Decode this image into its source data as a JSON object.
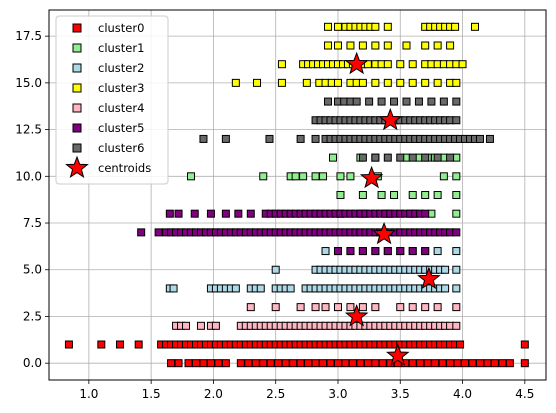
{
  "chart_data": {
    "type": "scatter",
    "title": "",
    "xlabel": "",
    "ylabel": "",
    "xlim": [
      0.68,
      4.67
    ],
    "ylim": [
      -0.9,
      18.9
    ],
    "grid": true,
    "legend_position": "top-left",
    "x_ticks": [
      "1.0",
      "1.5",
      "2.0",
      "2.5",
      "3.0",
      "3.5",
      "4.0",
      "4.5"
    ],
    "x_tick_values": [
      1.0,
      1.5,
      2.0,
      2.5,
      3.0,
      3.5,
      4.0,
      4.5
    ],
    "y_ticks": [
      "0.0",
      "2.5",
      "5.0",
      "7.5",
      "10.0",
      "12.5",
      "15.0",
      "17.5"
    ],
    "y_tick_values": [
      0,
      2.5,
      5,
      7.5,
      10,
      12.5,
      15,
      17.5
    ],
    "series": [
      {
        "name": "cluster0",
        "color": "#ff0000",
        "rows": [
          {
            "y": 1,
            "x": [
              0.84,
              1.1,
              1.25,
              1.4,
              1.58,
              1.62,
              1.66,
              1.7,
              1.74,
              1.78,
              1.82,
              1.86,
              1.9,
              1.94,
              1.98,
              2.02,
              2.06,
              2.1,
              2.14,
              2.18,
              2.22,
              2.26,
              2.3,
              2.34,
              2.38,
              2.42,
              2.46,
              2.5,
              2.54,
              2.58,
              2.62,
              2.66,
              2.7,
              2.74,
              2.78,
              2.82,
              2.86,
              2.9,
              2.94,
              2.98,
              3.02,
              3.06,
              3.1,
              3.14,
              3.18,
              3.22,
              3.26,
              3.3,
              3.34,
              3.38,
              3.42,
              3.46,
              3.5,
              3.54,
              3.58,
              3.62,
              3.66,
              3.7,
              3.74,
              3.78,
              3.82,
              3.86,
              3.9,
              3.94,
              3.98,
              4.5
            ]
          },
          {
            "y": 0,
            "x": [
              1.66,
              1.72,
              1.8,
              1.86,
              1.92,
              1.98,
              2.04,
              2.1,
              2.22,
              2.28,
              2.34,
              2.4,
              2.46,
              2.52,
              2.58,
              2.64,
              2.7,
              2.76,
              2.82,
              2.88,
              2.94,
              3.0,
              3.06,
              3.12,
              3.18,
              3.24,
              3.3,
              3.36,
              3.42,
              3.48,
              3.54,
              3.6,
              3.66,
              3.72,
              3.78,
              3.84,
              3.9,
              3.96,
              4.02,
              4.08,
              4.14,
              4.2,
              4.26,
              4.32,
              4.38,
              4.5
            ]
          }
        ]
      },
      {
        "name": "cluster1",
        "color": "#90ee90",
        "rows": [
          {
            "y": 11,
            "x": [
              2.96,
              3.18,
              3.3,
              3.55,
              3.65,
              3.72,
              3.78,
              3.85,
              3.95
            ]
          },
          {
            "y": 10,
            "x": [
              1.82,
              2.4,
              2.62,
              2.66,
              2.72,
              2.82,
              2.88,
              3.02,
              3.1,
              3.32,
              3.85,
              3.95
            ]
          },
          {
            "y": 9,
            "x": [
              3.02,
              3.2,
              3.35,
              3.45,
              3.6,
              3.7,
              3.8,
              3.95
            ]
          },
          {
            "y": 8,
            "x": [
              3.02,
              3.2,
              3.4,
              3.6,
              3.75,
              3.95
            ]
          }
        ]
      },
      {
        "name": "cluster2",
        "color": "#add8e6",
        "rows": [
          {
            "y": 6,
            "x": [
              2.9,
              3.0,
              3.1,
              3.2,
              3.3,
              3.4,
              3.5,
              3.6,
              3.7,
              3.8,
              3.95
            ]
          },
          {
            "y": 5,
            "x": [
              2.5,
              2.82,
              2.86,
              2.9,
              2.94,
              2.98,
              3.02,
              3.06,
              3.1,
              3.14,
              3.18,
              3.22,
              3.26,
              3.3,
              3.34,
              3.38,
              3.42,
              3.46,
              3.5,
              3.54,
              3.58,
              3.62,
              3.66,
              3.7,
              3.74,
              3.78,
              3.82,
              3.86,
              3.95
            ]
          },
          {
            "y": 4,
            "x": [
              1.65,
              1.68,
              1.98,
              2.02,
              2.06,
              2.1,
              2.14,
              2.18,
              2.3,
              2.34,
              2.38,
              2.5,
              2.54,
              2.58,
              2.62,
              2.74,
              2.78,
              2.82,
              2.86,
              2.9,
              2.94,
              2.98,
              3.02,
              3.06,
              3.1,
              3.14,
              3.18,
              3.22,
              3.26,
              3.3,
              3.34,
              3.38,
              3.42,
              3.46,
              3.5,
              3.54,
              3.58,
              3.62,
              3.66,
              3.7,
              3.74,
              3.78,
              3.82,
              3.86,
              3.95
            ]
          }
        ]
      },
      {
        "name": "cluster3",
        "color": "#ffff00",
        "rows": [
          {
            "y": 18,
            "x": [
              2.92,
              3.0,
              3.06,
              3.1,
              3.14,
              3.18,
              3.22,
              3.26,
              3.3,
              3.4,
              3.7,
              3.74,
              3.78,
              3.82,
              3.86,
              3.9,
              3.94,
              4.1
            ]
          },
          {
            "y": 17,
            "x": [
              2.92,
              3.0,
              3.1,
              3.2,
              3.3,
              3.4,
              3.55,
              3.7,
              3.8,
              3.9
            ]
          },
          {
            "y": 16,
            "x": [
              2.55,
              2.72,
              2.76,
              2.8,
              2.84,
              2.88,
              2.92,
              2.96,
              3.0,
              3.04,
              3.08,
              3.12,
              3.16,
              3.2,
              3.24,
              3.3,
              3.35,
              3.4,
              3.5,
              3.6,
              3.7,
              3.75,
              3.8,
              3.85,
              3.9,
              3.95,
              4.0
            ]
          },
          {
            "y": 15,
            "x": [
              2.18,
              2.35,
              2.55,
              2.75,
              2.85,
              2.9,
              2.95,
              3.0,
              3.1,
              3.15,
              3.2,
              3.3,
              3.4,
              3.5,
              3.6,
              3.7,
              3.8,
              3.9,
              3.95
            ]
          }
        ]
      },
      {
        "name": "cluster4",
        "color": "#ffb6c1",
        "rows": [
          {
            "y": 3,
            "x": [
              2.3,
              2.5,
              2.7,
              2.82,
              2.9,
              3.0,
              3.1,
              3.2,
              3.3,
              3.5,
              3.6,
              3.7,
              3.8,
              3.95
            ]
          },
          {
            "y": 2,
            "x": [
              1.7,
              1.74,
              1.78,
              1.9,
              1.98,
              2.02,
              2.22,
              2.26,
              2.3,
              2.34,
              2.38,
              2.42,
              2.46,
              2.5,
              2.54,
              2.58,
              2.62,
              2.66,
              2.7,
              2.74,
              2.78,
              2.82,
              2.86,
              2.9,
              2.94,
              2.98,
              3.02,
              3.06,
              3.1,
              3.14,
              3.18,
              3.22,
              3.26,
              3.3,
              3.34,
              3.38,
              3.42,
              3.46,
              3.5,
              3.54,
              3.58,
              3.62,
              3.66,
              3.7,
              3.74,
              3.78,
              3.82,
              3.86,
              3.9,
              3.95
            ]
          }
        ]
      },
      {
        "name": "cluster5",
        "color": "#800080",
        "rows": [
          {
            "y": 8,
            "x": [
              1.65,
              1.72,
              1.85,
              1.98,
              2.1,
              2.2,
              2.3,
              2.42,
              2.46,
              2.5,
              2.54,
              2.58,
              2.62,
              2.66,
              2.7,
              2.74,
              2.78,
              2.82,
              2.86,
              2.9,
              2.94,
              2.98,
              3.02,
              3.06,
              3.1,
              3.14,
              3.18,
              3.22,
              3.26,
              3.3,
              3.34,
              3.38,
              3.42,
              3.46,
              3.5,
              3.54,
              3.58,
              3.62,
              3.66,
              3.7
            ]
          },
          {
            "y": 7,
            "x": [
              1.42,
              1.56,
              1.62,
              1.66,
              1.7,
              1.74,
              1.78,
              1.82,
              1.86,
              1.9,
              1.94,
              1.98,
              2.02,
              2.06,
              2.1,
              2.14,
              2.18,
              2.22,
              2.26,
              2.3,
              2.34,
              2.38,
              2.42,
              2.46,
              2.5,
              2.54,
              2.58,
              2.62,
              2.66,
              2.7,
              2.74,
              2.78,
              2.82,
              2.86,
              2.9,
              2.94,
              2.98,
              3.02,
              3.06,
              3.1,
              3.14,
              3.18,
              3.22,
              3.26,
              3.3,
              3.34,
              3.38,
              3.42,
              3.46,
              3.5,
              3.54,
              3.58,
              3.62,
              3.66,
              3.7,
              3.74,
              3.78,
              3.82,
              3.86,
              3.9,
              3.95
            ]
          },
          {
            "y": 6,
            "x": [
              3.0,
              3.1,
              3.2,
              3.3,
              3.4,
              3.5,
              3.6,
              3.7
            ]
          }
        ]
      },
      {
        "name": "cluster6",
        "color": "#696969",
        "rows": [
          {
            "y": 14,
            "x": [
              2.92,
              3.0,
              3.05,
              3.1,
              3.15,
              3.25,
              3.35,
              3.45,
              3.55,
              3.65,
              3.75,
              3.85,
              3.95
            ]
          },
          {
            "y": 13,
            "x": [
              2.82,
              2.86,
              2.9,
              2.94,
              2.98,
              3.02,
              3.06,
              3.1,
              3.14,
              3.18,
              3.22,
              3.26,
              3.3,
              3.34,
              3.38,
              3.42,
              3.46,
              3.5,
              3.54,
              3.58,
              3.62,
              3.66,
              3.7,
              3.74,
              3.78,
              3.82,
              3.86,
              3.9,
              3.95
            ]
          },
          {
            "y": 12,
            "x": [
              1.92,
              2.1,
              2.45,
              2.7,
              2.82,
              2.9,
              2.94,
              2.98,
              3.02,
              3.06,
              3.1,
              3.14,
              3.18,
              3.22,
              3.26,
              3.3,
              3.34,
              3.38,
              3.42,
              3.46,
              3.5,
              3.54,
              3.58,
              3.62,
              3.66,
              3.7,
              3.74,
              3.78,
              3.82,
              3.86,
              3.9,
              3.94,
              3.98,
              4.02,
              4.06,
              4.1,
              4.14,
              4.22
            ]
          },
          {
            "y": 11,
            "x": [
              3.2,
              3.3,
              3.4,
              3.5,
              3.6,
              3.7,
              3.8,
              3.9
            ]
          }
        ]
      }
    ],
    "centroids": {
      "name": "centroids",
      "color": "#ff0000",
      "points": [
        [
          3.48,
          0.4
        ],
        [
          3.15,
          2.5
        ],
        [
          3.73,
          4.5
        ],
        [
          3.37,
          6.9
        ],
        [
          3.27,
          9.9
        ],
        [
          3.42,
          13.0
        ],
        [
          3.15,
          16.0
        ]
      ]
    }
  }
}
